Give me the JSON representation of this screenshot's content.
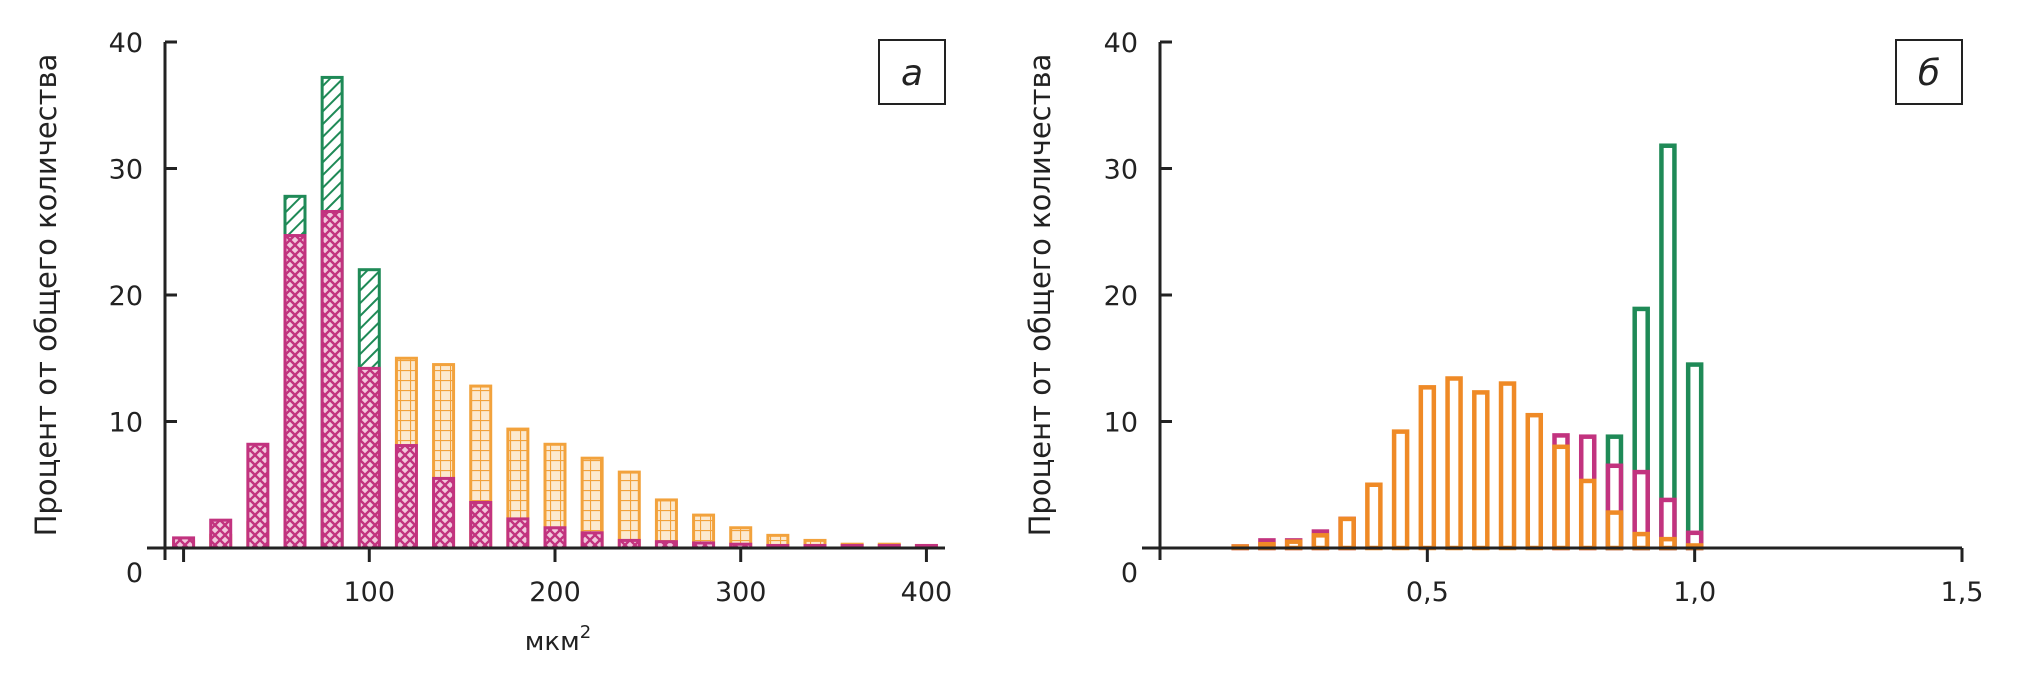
{
  "colors": {
    "magenta": "#c2337f",
    "orange": "#f2a23c",
    "orange_dark": "#ef8a26",
    "green": "#1f8a57",
    "axis": "#222222"
  },
  "chart_data": [
    {
      "type": "bar",
      "panel_label": "а",
      "xlabel": "мкм",
      "xlabel_sup": "2",
      "ylabel": "Процент от общего количества",
      "xlim": [
        -10,
        410
      ],
      "ylim": [
        0,
        40
      ],
      "x_ticks": [
        100,
        200,
        300,
        400
      ],
      "x_tick_labels": [
        "100",
        "200",
        "300",
        "400"
      ],
      "y_ticks": [
        0,
        10,
        20,
        30,
        40
      ],
      "y_tick_labels": [
        "0",
        "10",
        "20",
        "30",
        "40"
      ],
      "grid": false,
      "series": [
        {
          "color_key": "orange",
          "pattern": "grid",
          "points": [
            [
              0,
              0.5
            ],
            [
              20,
              1.0
            ],
            [
              40,
              2.0
            ],
            [
              60,
              3.0
            ],
            [
              80,
              4.5
            ],
            [
              100,
              9.0
            ],
            [
              120,
              15.0
            ],
            [
              140,
              14.5
            ],
            [
              160,
              12.8
            ],
            [
              180,
              9.4
            ],
            [
              200,
              8.2
            ],
            [
              220,
              7.1
            ],
            [
              240,
              6.0
            ],
            [
              260,
              3.8
            ],
            [
              280,
              2.6
            ],
            [
              300,
              1.6
            ],
            [
              320,
              1.0
            ],
            [
              340,
              0.6
            ],
            [
              360,
              0.3
            ],
            [
              380,
              0.3
            ],
            [
              400,
              0.2
            ]
          ]
        },
        {
          "color_key": "green",
          "pattern": "hatch",
          "points": [
            [
              60,
              27.8
            ],
            [
              80,
              37.2
            ],
            [
              100,
              22.0
            ]
          ]
        },
        {
          "color_key": "magenta",
          "pattern": "cross",
          "points": [
            [
              0,
              0.8
            ],
            [
              20,
              2.2
            ],
            [
              40,
              8.2
            ],
            [
              60,
              24.7
            ],
            [
              80,
              26.6
            ],
            [
              100,
              14.2
            ],
            [
              120,
              8.1
            ],
            [
              140,
              5.5
            ],
            [
              160,
              3.6
            ],
            [
              180,
              2.3
            ],
            [
              200,
              1.6
            ],
            [
              220,
              1.2
            ],
            [
              240,
              0.6
            ],
            [
              260,
              0.5
            ],
            [
              280,
              0.4
            ],
            [
              300,
              0.3
            ],
            [
              320,
              0.2
            ],
            [
              340,
              0.2
            ],
            [
              360,
              0.2
            ],
            [
              380,
              0.2
            ],
            [
              400,
              0.2
            ]
          ]
        }
      ]
    },
    {
      "type": "bar",
      "panel_label": "б",
      "xlabel": "",
      "ylabel": "Процент от общего количества",
      "xlim": [
        0,
        1.5
      ],
      "ylim": [
        0,
        40
      ],
      "x_ticks": [
        0.5,
        1.0,
        1.5
      ],
      "x_tick_labels": [
        "0,5",
        "1,0",
        "1,5"
      ],
      "y_ticks": [
        0,
        10,
        20,
        30,
        40
      ],
      "y_tick_labels": [
        "0",
        "10",
        "20",
        "30",
        "40"
      ],
      "grid": false,
      "series": [
        {
          "color_key": "green",
          "pattern": "outline",
          "points": [
            [
              0.85,
              8.8
            ],
            [
              0.9,
              18.9
            ],
            [
              0.95,
              31.8
            ],
            [
              1.0,
              14.5
            ]
          ]
        },
        {
          "color_key": "magenta",
          "pattern": "outline",
          "points": [
            [
              0.15,
              0.1
            ],
            [
              0.2,
              0.6
            ],
            [
              0.25,
              0.6
            ],
            [
              0.3,
              1.3
            ],
            [
              0.35,
              2.3
            ],
            [
              0.75,
              8.9
            ],
            [
              0.8,
              8.8
            ],
            [
              0.85,
              6.5
            ],
            [
              0.9,
              6.0
            ],
            [
              0.95,
              3.8
            ],
            [
              1.0,
              1.2
            ]
          ]
        },
        {
          "color_key": "orange_dark",
          "pattern": "outline",
          "points": [
            [
              0.15,
              0.1
            ],
            [
              0.2,
              0.3
            ],
            [
              0.25,
              0.5
            ],
            [
              0.3,
              1.0
            ],
            [
              0.35,
              2.3
            ],
            [
              0.4,
              5.0
            ],
            [
              0.45,
              9.2
            ],
            [
              0.5,
              12.7
            ],
            [
              0.55,
              13.4
            ],
            [
              0.6,
              12.3
            ],
            [
              0.65,
              13.0
            ],
            [
              0.7,
              10.5
            ],
            [
              0.75,
              8.0
            ],
            [
              0.8,
              5.3
            ],
            [
              0.85,
              2.8
            ],
            [
              0.9,
              1.1
            ],
            [
              0.95,
              0.7
            ],
            [
              1.0,
              0.2
            ]
          ]
        }
      ]
    }
  ]
}
